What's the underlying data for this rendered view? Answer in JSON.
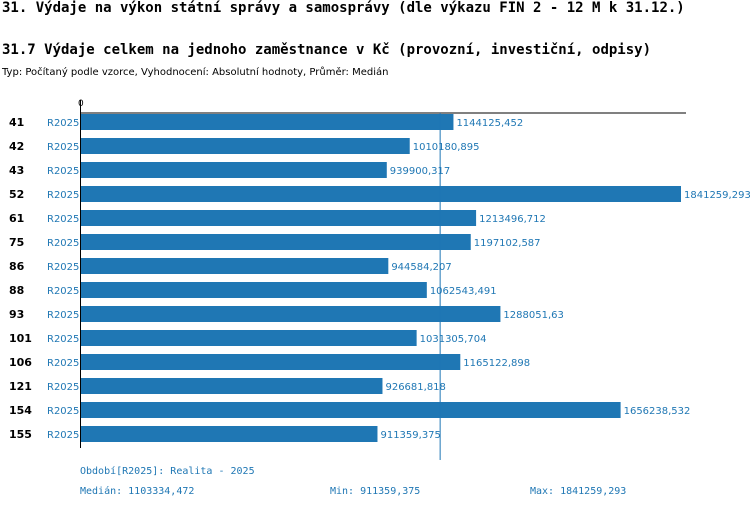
{
  "header": {
    "title": "31. Výdaje na výkon státní správy a samosprávy (dle výkazu FIN 2 - 12 M k 31.12.)",
    "subtitle": "31.7 Výdaje celkem na jednoho zaměstnance v Kč (provozní, investiční, odpisy)",
    "meta": "Typ: Počítaný podle vzorce, Vyhodnocení: Absolutní hodnoty, Průměr: Medián"
  },
  "chart_data": {
    "type": "bar",
    "orientation": "horizontal",
    "axis_zero_label": "0",
    "series_label": "R2025",
    "categories": [
      "41",
      "42",
      "43",
      "52",
      "61",
      "75",
      "86",
      "88",
      "93",
      "101",
      "106",
      "121",
      "154",
      "155"
    ],
    "values": [
      1144125.452,
      1010180.895,
      939900.317,
      1841259.293,
      1213496.712,
      1197102.587,
      944584.207,
      1062543.491,
      1288051.63,
      1031305.704,
      1165122.898,
      926681.818,
      1656238.532,
      911359.375
    ],
    "value_labels": [
      "1144125,452",
      "1010180,895",
      "939900,317",
      "1841259,293",
      "1213496,712",
      "1197102,587",
      "944584,207",
      "1062543,491",
      "1288051,63",
      "1031305,704",
      "1165122,898",
      "926681,818",
      "1656238,532",
      "911359,375"
    ],
    "median": 1103334.472,
    "xlim": [
      0,
      1841259.293
    ],
    "bar_color": "#1f77b4"
  },
  "footer": {
    "period": "Období[R2025]: Realita - 2025",
    "median": "Medián: 1103334,472",
    "min": "Min: 911359,375",
    "max": "Max: 1841259,293"
  }
}
